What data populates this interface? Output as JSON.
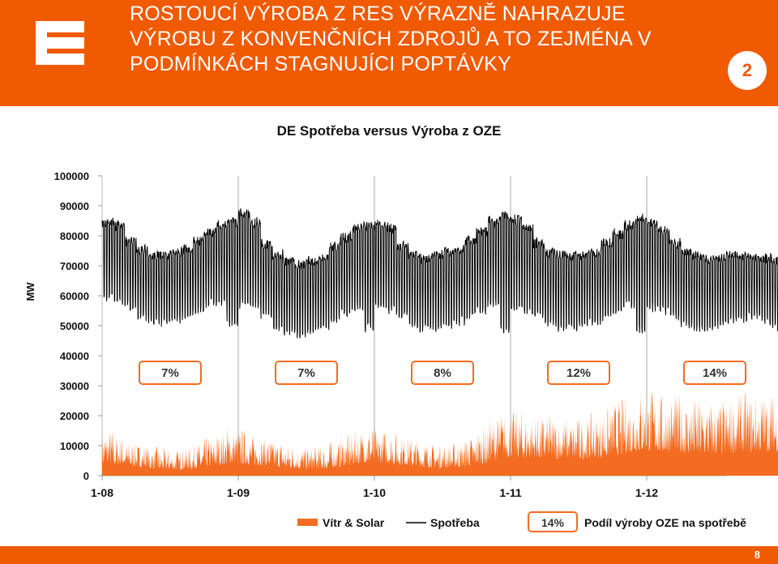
{
  "header": {
    "title_lines": [
      "ROSTOUCÍ VÝROBA Z RES VÝRAZNĚ NAHRAZUJE",
      "VÝROBU Z KONVENČNÍCH ZDROJŮ A TO ZEJMÉNA V",
      "PODMÍNKÁCH STAGNUJÍCI POPTÁVKY"
    ],
    "page_badge": "2",
    "logo_icon": "cez-logo-icon"
  },
  "footer": {
    "page_number": "8"
  },
  "colors": {
    "brand": "#f05a00",
    "series_ote": "#f36c21",
    "series_consumption": "#000000"
  },
  "chart_data": {
    "type": "line",
    "title": "DE Spotřeba versus Výroba z OZE",
    "ylabel": "MW",
    "xlabel": "",
    "ylim": [
      0,
      100000
    ],
    "y_ticks": [
      0,
      10000,
      20000,
      30000,
      40000,
      50000,
      60000,
      70000,
      80000,
      90000,
      100000
    ],
    "y_tick_labels": [
      "0",
      "10000",
      "20000",
      "30000",
      "40000",
      "50000",
      "60000",
      "70000",
      "80000",
      "90000",
      "100000"
    ],
    "x_ticks": [
      "1-08",
      "1-09",
      "1-10",
      "1-11",
      "1-12"
    ],
    "grid": false,
    "legend": "bottom",
    "series": [
      {
        "name": "Vítr & Solar",
        "type": "area",
        "monthly_avg": [
          7000,
          6500,
          5500,
          5000,
          4000,
          3500,
          3500,
          4000,
          4500,
          5500,
          6500,
          7500,
          7000,
          6500,
          6000,
          5000,
          4500,
          4000,
          4000,
          4000,
          5000,
          6000,
          7000,
          8000,
          7500,
          7000,
          6500,
          5500,
          5000,
          4500,
          4500,
          5000,
          6000,
          7000,
          9000,
          11000,
          11000,
          10500,
          10500,
          10500,
          10000,
          10000,
          10000,
          10500,
          11500,
          12500,
          14000,
          15000,
          15000,
          14000,
          14000,
          13500,
          13000,
          13000,
          13000,
          13500,
          14000,
          14000,
          14500,
          14500
        ],
        "monthly_peak": [
          16000,
          14000,
          12000,
          11000,
          10000,
          9000,
          9000,
          9500,
          11000,
          13000,
          15000,
          17000,
          16000,
          14000,
          13000,
          12000,
          11000,
          10000,
          10000,
          10500,
          12000,
          14000,
          16000,
          18000,
          16000,
          15000,
          14000,
          13000,
          12000,
          11000,
          11000,
          12000,
          14000,
          17000,
          20000,
          22000,
          22000,
          21000,
          21000,
          21000,
          20000,
          20000,
          20000,
          21000,
          23000,
          26000,
          28000,
          30000,
          29000,
          28000,
          28000,
          27000,
          27000,
          26000,
          26000,
          27000,
          28000,
          28000,
          29000,
          28000
        ]
      },
      {
        "name": "Spotřeba",
        "type": "line",
        "monthly_max": [
          86000,
          85000,
          80000,
          77000,
          75000,
          75000,
          76000,
          77000,
          80000,
          83000,
          85000,
          86000,
          89000,
          86000,
          79000,
          75000,
          73000,
          72000,
          73000,
          74000,
          78000,
          81000,
          84000,
          85000,
          85000,
          84000,
          78000,
          75000,
          74000,
          75000,
          76000,
          77000,
          80000,
          83000,
          86000,
          88000,
          87000,
          84000,
          79000,
          76000,
          75000,
          75000,
          75000,
          76000,
          79000,
          82000,
          85000,
          87000,
          86000,
          83000,
          79000,
          76000,
          75000,
          74000,
          74000,
          75000,
          75000,
          74000,
          74000,
          73000
        ],
        "monthly_min": [
          58000,
          57000,
          55000,
          52000,
          50000,
          50000,
          51000,
          52000,
          54000,
          56000,
          57000,
          50000,
          56000,
          55000,
          52000,
          48000,
          47000,
          46000,
          47000,
          48000,
          51000,
          53000,
          55000,
          48000,
          55000,
          54000,
          52000,
          49000,
          48000,
          48000,
          49000,
          50000,
          52000,
          54000,
          56000,
          47000,
          55000,
          54000,
          52000,
          49000,
          48000,
          48000,
          49000,
          50000,
          52000,
          54000,
          56000,
          47000,
          55000,
          54000,
          52000,
          49000,
          48000,
          48000,
          49000,
          50000,
          51000,
          52000,
          50000,
          48000
        ]
      }
    ],
    "annotations": [
      {
        "label": "7%",
        "year": "2008"
      },
      {
        "label": "7%",
        "year": "2009"
      },
      {
        "label": "8%",
        "year": "2010"
      },
      {
        "label": "12%",
        "year": "2011"
      },
      {
        "label": "14%",
        "year": "2012"
      }
    ],
    "legend_items": {
      "area": "Vítr & Solar",
      "line": "Spotřeba",
      "box_sample": "14%",
      "box_text": "Podíl výroby OZE na spotřebě"
    }
  }
}
